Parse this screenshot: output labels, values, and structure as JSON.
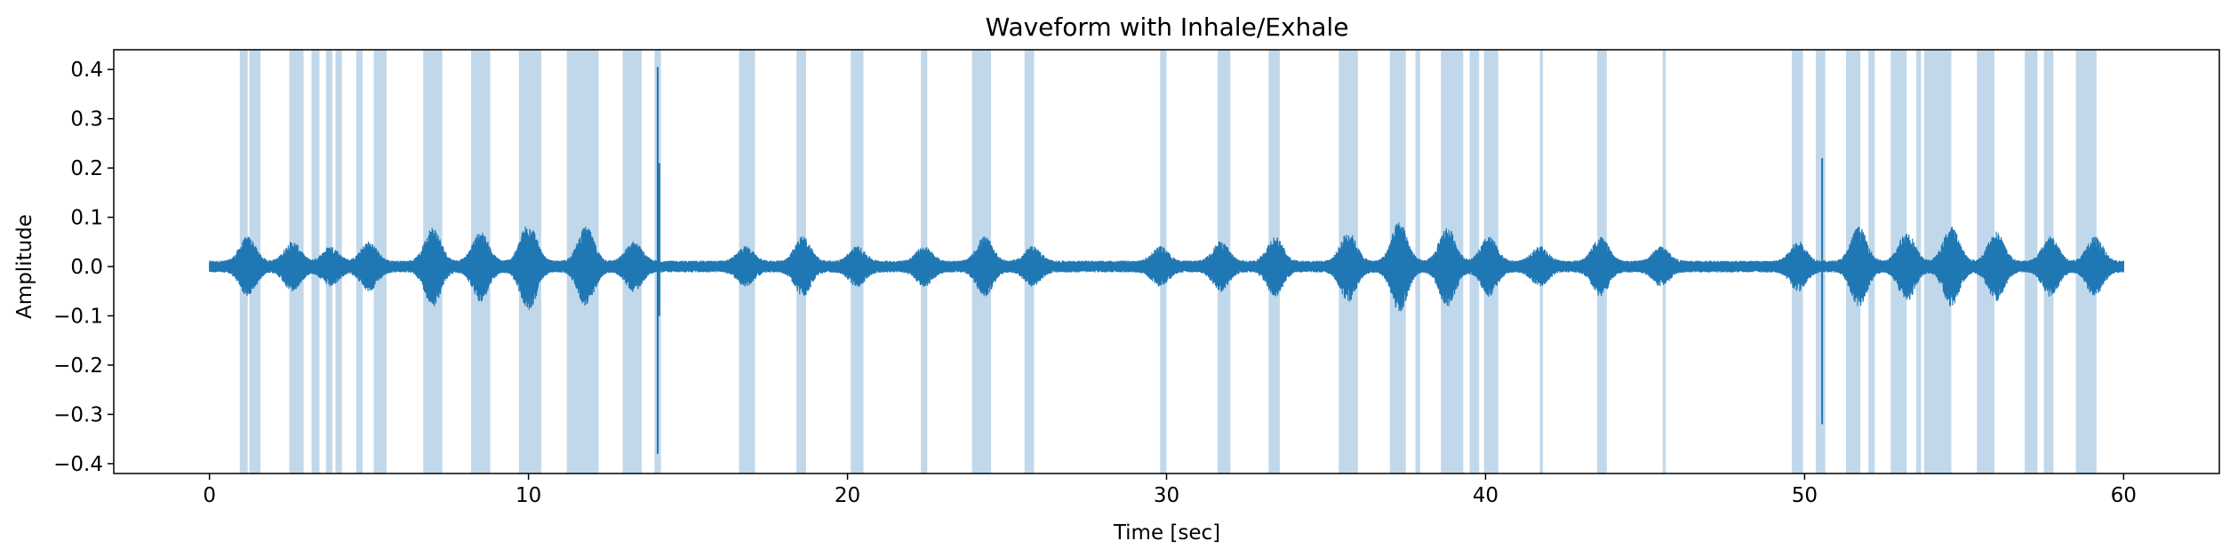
{
  "chart_data": {
    "type": "line",
    "title": "Waveform with Inhale/Exhale",
    "xlabel": "Time [sec]",
    "ylabel": "Amplitude",
    "xlim": [
      -3,
      63
    ],
    "ylim": [
      -0.42,
      0.44
    ],
    "x_ticks": [
      0,
      10,
      20,
      30,
      40,
      50,
      60
    ],
    "y_ticks": [
      -0.4,
      -0.3,
      -0.2,
      -0.1,
      0.0,
      0.1,
      0.2,
      0.3,
      0.4
    ],
    "grid": false,
    "legend": "none",
    "colors": {
      "waveform": "#1f77b4",
      "region": "#a6c8e2"
    },
    "series": [
      {
        "samples_per_second": 100,
        "duration_sec": 60,
        "baseline_amplitude": 0.012,
        "bursts": [
          {
            "t": 1.2,
            "amp": 0.05
          },
          {
            "t": 2.6,
            "amp": 0.04
          },
          {
            "t": 3.8,
            "amp": 0.03
          },
          {
            "t": 5.0,
            "amp": 0.04
          },
          {
            "t": 7.0,
            "amp": 0.07
          },
          {
            "t": 8.5,
            "amp": 0.06
          },
          {
            "t": 10.0,
            "amp": 0.08
          },
          {
            "t": 11.8,
            "amp": 0.07
          },
          {
            "t": 13.3,
            "amp": 0.04
          },
          {
            "t": 16.8,
            "amp": 0.03
          },
          {
            "t": 18.6,
            "amp": 0.05
          },
          {
            "t": 20.3,
            "amp": 0.03
          },
          {
            "t": 22.4,
            "amp": 0.03
          },
          {
            "t": 24.3,
            "amp": 0.05
          },
          {
            "t": 25.8,
            "amp": 0.03
          },
          {
            "t": 29.8,
            "amp": 0.03
          },
          {
            "t": 31.7,
            "amp": 0.04
          },
          {
            "t": 33.4,
            "amp": 0.05
          },
          {
            "t": 35.7,
            "amp": 0.06
          },
          {
            "t": 37.3,
            "amp": 0.08
          },
          {
            "t": 38.8,
            "amp": 0.07
          },
          {
            "t": 40.1,
            "amp": 0.05
          },
          {
            "t": 41.7,
            "amp": 0.03
          },
          {
            "t": 43.6,
            "amp": 0.05
          },
          {
            "t": 45.5,
            "amp": 0.03
          },
          {
            "t": 49.8,
            "amp": 0.04
          },
          {
            "t": 51.7,
            "amp": 0.07
          },
          {
            "t": 53.2,
            "amp": 0.06
          },
          {
            "t": 54.6,
            "amp": 0.07
          },
          {
            "t": 56.0,
            "amp": 0.06
          },
          {
            "t": 57.7,
            "amp": 0.05
          },
          {
            "t": 59.1,
            "amp": 0.05
          }
        ],
        "spikes": [
          {
            "t": 14.05,
            "min": -0.38,
            "max": 0.405
          },
          {
            "t": 14.1,
            "min": -0.1,
            "max": 0.21
          },
          {
            "t": 50.55,
            "min": -0.32,
            "max": 0.22
          }
        ]
      }
    ],
    "shaded_regions": [
      [
        0.95,
        1.2
      ],
      [
        1.25,
        1.6
      ],
      [
        2.5,
        2.95
      ],
      [
        3.2,
        3.45
      ],
      [
        3.65,
        3.85
      ],
      [
        3.95,
        4.15
      ],
      [
        4.6,
        4.8
      ],
      [
        5.15,
        5.55
      ],
      [
        6.7,
        7.3
      ],
      [
        8.2,
        8.8
      ],
      [
        9.7,
        10.4
      ],
      [
        11.2,
        12.2
      ],
      [
        12.95,
        13.55
      ],
      [
        13.95,
        14.15
      ],
      [
        16.6,
        17.1
      ],
      [
        18.4,
        18.7
      ],
      [
        20.1,
        20.5
      ],
      [
        22.3,
        22.5
      ],
      [
        23.9,
        24.5
      ],
      [
        25.55,
        25.85
      ],
      [
        29.8,
        30.0
      ],
      [
        31.6,
        32.0
      ],
      [
        33.2,
        33.55
      ],
      [
        35.4,
        36.0
      ],
      [
        37.0,
        37.5
      ],
      [
        37.8,
        37.95
      ],
      [
        38.6,
        39.3
      ],
      [
        39.5,
        39.8
      ],
      [
        39.95,
        40.4
      ],
      [
        41.7,
        41.8
      ],
      [
        43.5,
        43.8
      ],
      [
        45.55,
        45.65
      ],
      [
        49.6,
        49.95
      ],
      [
        50.35,
        50.65
      ],
      [
        51.3,
        51.75
      ],
      [
        52.0,
        52.2
      ],
      [
        52.7,
        53.2
      ],
      [
        53.5,
        53.65
      ],
      [
        53.75,
        54.6
      ],
      [
        55.4,
        55.95
      ],
      [
        56.9,
        57.3
      ],
      [
        57.5,
        57.8
      ],
      [
        58.5,
        59.15
      ]
    ]
  }
}
